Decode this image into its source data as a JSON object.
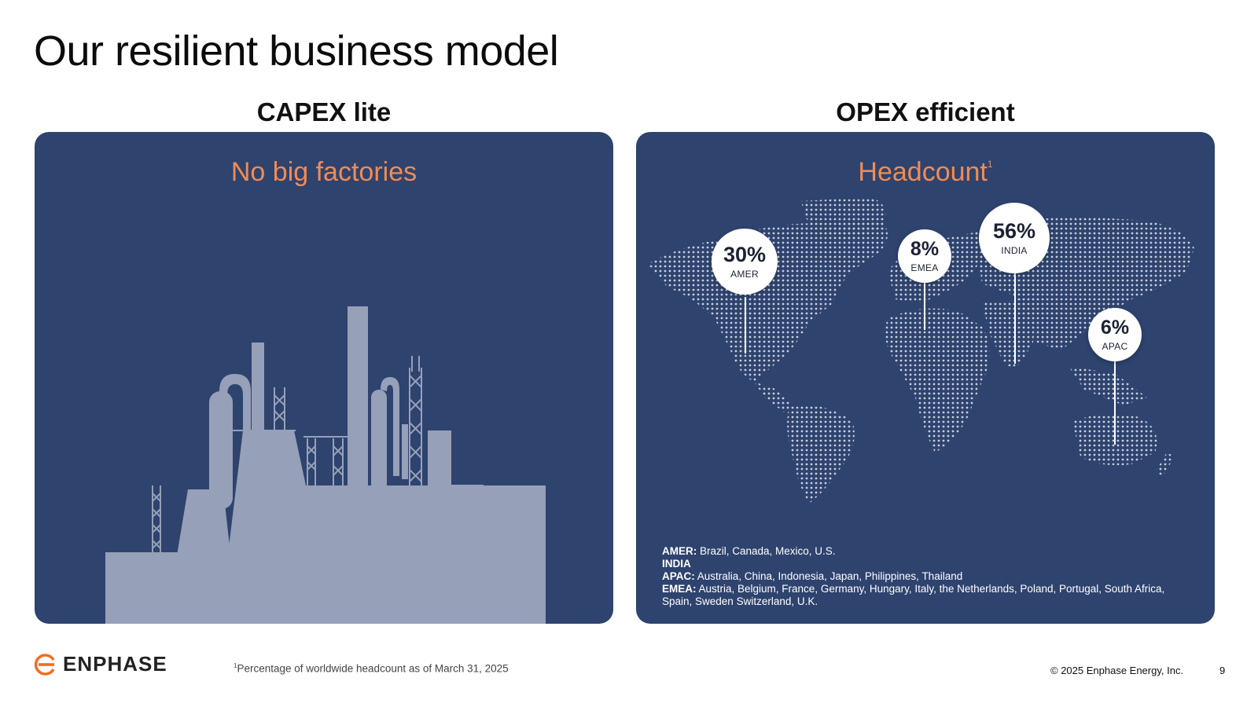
{
  "page": {
    "title": "Our resilient business model"
  },
  "left": {
    "heading": "CAPEX lite",
    "panel_title": "No big factories"
  },
  "right": {
    "heading": "OPEX efficient",
    "panel_title": "Headcount",
    "panel_title_sup": "1",
    "regions": [
      {
        "pct": "30%",
        "name": "AMER"
      },
      {
        "pct": "8%",
        "name": "EMEA"
      },
      {
        "pct": "56%",
        "name": "INDIA"
      },
      {
        "pct": "6%",
        "name": "APAC"
      }
    ],
    "legend": [
      {
        "label": "AMER:",
        "text": " Brazil, Canada, Mexico, U.S."
      },
      {
        "label": "INDIA",
        "text": ""
      },
      {
        "label": "APAC:",
        "text": " Australia, China, Indonesia, Japan, Philippines, Thailand"
      },
      {
        "label": "EMEA:",
        "text": " Austria, Belgium, France, Germany, Hungary, Italy, the Netherlands, Poland, Portugal, South Africa, Spain, Sweden Switzerland, U.K."
      }
    ]
  },
  "footer": {
    "logo_text": "ENPHASE",
    "footnote_sup": "1",
    "footnote": "Percentage of worldwide headcount as of March 31, 2025",
    "copyright": "© 2025 Enphase Energy, Inc.",
    "page_number": "9"
  },
  "colors": {
    "panel_bg": "#2e436e",
    "accent_orange": "#f28b54",
    "factory_fill": "#96a0b8"
  },
  "icons": [
    "factory-illustration",
    "world-map-dots",
    "enphase-logo-icon"
  ]
}
